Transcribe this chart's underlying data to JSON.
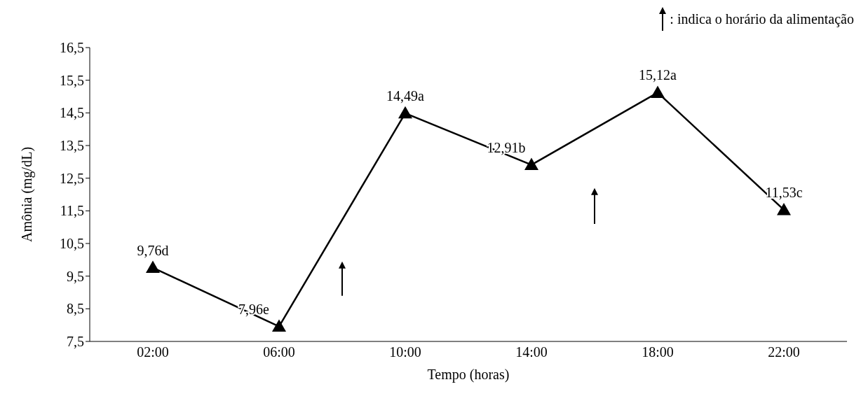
{
  "chart_data": {
    "type": "line",
    "categories": [
      "02:00",
      "06:00",
      "10:00",
      "14:00",
      "18:00",
      "22:00"
    ],
    "series": [
      {
        "color": "#000000",
        "values": [
          9.76,
          7.96,
          14.49,
          12.91,
          15.12,
          11.53
        ],
        "value_labels": [
          "9,76d",
          "7,96e",
          "14,49a",
          "12,91b",
          "15,12a",
          "11,53c"
        ]
      }
    ],
    "xlabel": "Tempo (horas)",
    "ylabel": "Amônia (mg/dL)",
    "ylim": [
      7.5,
      16.5
    ],
    "yticks": [
      {
        "value": 7.5,
        "label": "7,5"
      },
      {
        "value": 8.5,
        "label": "8,5"
      },
      {
        "value": 9.5,
        "label": "9,5"
      },
      {
        "value": 10.5,
        "label": "10,5"
      },
      {
        "value": 11.5,
        "label": "11,5"
      },
      {
        "value": 12.5,
        "label": "12,5"
      },
      {
        "value": 13.5,
        "label": "13,5"
      },
      {
        "value": 14.5,
        "label": "14,5"
      },
      {
        "value": 15.5,
        "label": "15,5"
      },
      {
        "value": 16.5,
        "label": "16,5"
      }
    ],
    "annotations": [
      ": indica o horário da alimentação"
    ],
    "marker": "triangle",
    "line_style": "solid",
    "grid": false,
    "legend": false
  }
}
